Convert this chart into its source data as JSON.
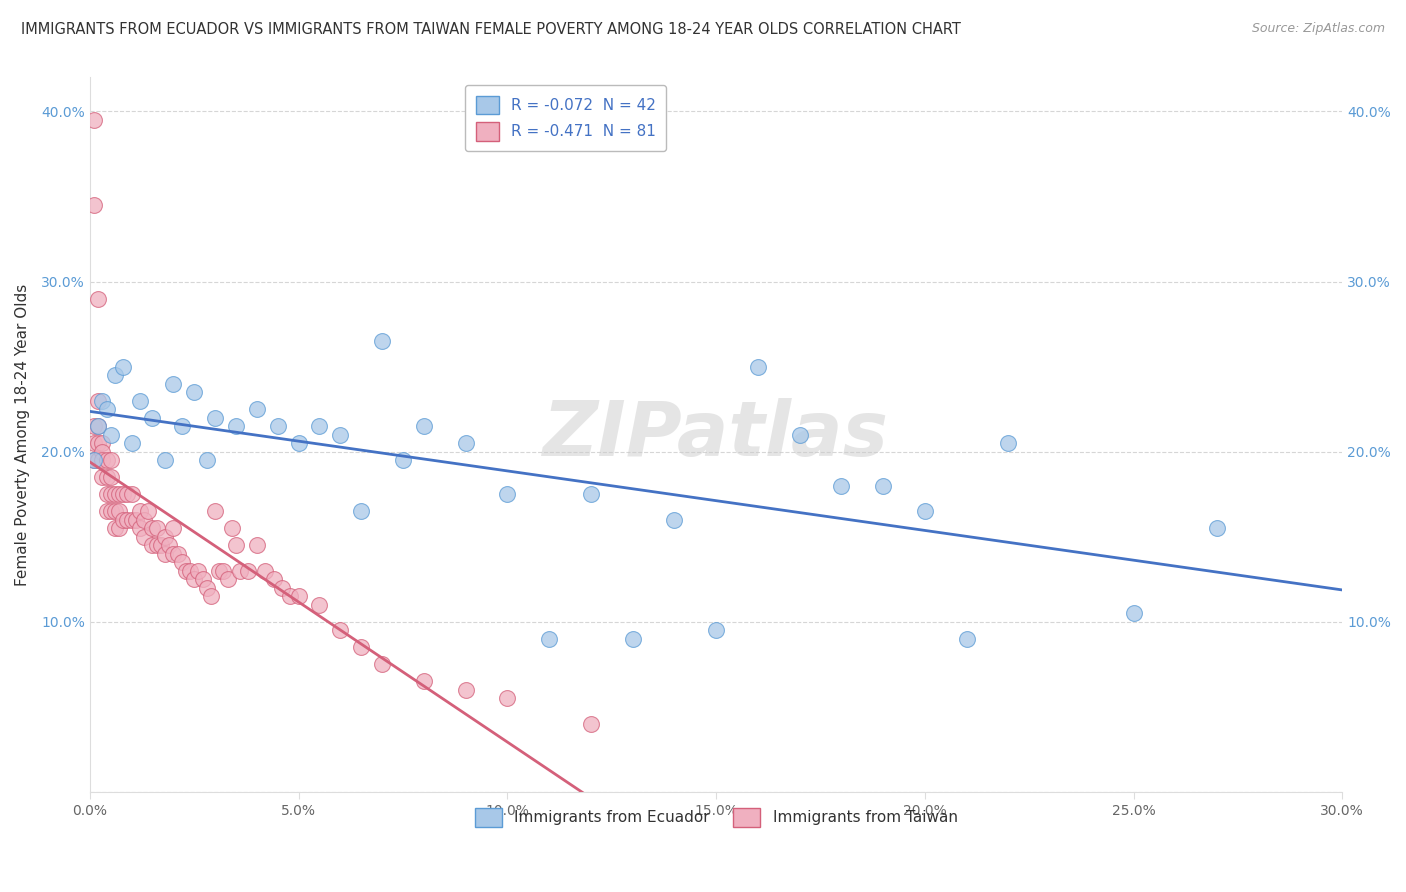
{
  "title": "IMMIGRANTS FROM ECUADOR VS IMMIGRANTS FROM TAIWAN FEMALE POVERTY AMONG 18-24 YEAR OLDS CORRELATION CHART",
  "source": "Source: ZipAtlas.com",
  "ylabel": "Female Poverty Among 18-24 Year Olds",
  "xlim": [
    0.0,
    0.3
  ],
  "ylim": [
    0.0,
    0.42
  ],
  "xticks": [
    0.0,
    0.05,
    0.1,
    0.15,
    0.2,
    0.25,
    0.3
  ],
  "yticks": [
    0.0,
    0.1,
    0.2,
    0.3,
    0.4
  ],
  "ecuador_color": "#a8c8e8",
  "taiwan_color": "#f0b0c0",
  "ecuador_edge": "#5b9bd5",
  "taiwan_edge": "#d4607a",
  "line_ecuador_color": "#4472c4",
  "line_taiwan_color": "#d4607a",
  "legend_ecuador_label": "R = -0.072  N = 42",
  "legend_taiwan_label": "R = -0.471  N = 81",
  "legend_bottom_ecuador": "Immigrants from Ecuador",
  "legend_bottom_taiwan": "Immigrants from Taiwan",
  "watermark": "ZIPatlas",
  "ecuador_x": [
    0.001,
    0.002,
    0.003,
    0.004,
    0.005,
    0.006,
    0.008,
    0.01,
    0.012,
    0.015,
    0.018,
    0.02,
    0.022,
    0.025,
    0.028,
    0.03,
    0.035,
    0.04,
    0.045,
    0.05,
    0.055,
    0.06,
    0.065,
    0.07,
    0.075,
    0.08,
    0.09,
    0.1,
    0.11,
    0.12,
    0.13,
    0.14,
    0.15,
    0.16,
    0.17,
    0.18,
    0.19,
    0.2,
    0.21,
    0.22,
    0.25,
    0.27
  ],
  "ecuador_y": [
    0.195,
    0.215,
    0.23,
    0.225,
    0.21,
    0.245,
    0.25,
    0.205,
    0.23,
    0.22,
    0.195,
    0.24,
    0.215,
    0.235,
    0.195,
    0.22,
    0.215,
    0.225,
    0.215,
    0.205,
    0.215,
    0.21,
    0.165,
    0.265,
    0.195,
    0.215,
    0.205,
    0.175,
    0.09,
    0.175,
    0.09,
    0.16,
    0.095,
    0.25,
    0.21,
    0.18,
    0.18,
    0.165,
    0.09,
    0.205,
    0.105,
    0.155
  ],
  "taiwan_x": [
    0.001,
    0.001,
    0.001,
    0.001,
    0.001,
    0.002,
    0.002,
    0.002,
    0.002,
    0.003,
    0.003,
    0.003,
    0.003,
    0.004,
    0.004,
    0.004,
    0.004,
    0.005,
    0.005,
    0.005,
    0.005,
    0.006,
    0.006,
    0.006,
    0.007,
    0.007,
    0.007,
    0.008,
    0.008,
    0.009,
    0.009,
    0.01,
    0.01,
    0.011,
    0.012,
    0.012,
    0.013,
    0.013,
    0.014,
    0.015,
    0.015,
    0.016,
    0.016,
    0.017,
    0.018,
    0.018,
    0.019,
    0.02,
    0.02,
    0.021,
    0.022,
    0.023,
    0.024,
    0.025,
    0.026,
    0.027,
    0.028,
    0.029,
    0.03,
    0.031,
    0.032,
    0.033,
    0.034,
    0.035,
    0.036,
    0.038,
    0.04,
    0.042,
    0.044,
    0.046,
    0.048,
    0.05,
    0.055,
    0.06,
    0.065,
    0.07,
    0.08,
    0.09,
    0.1,
    0.12,
    0.002
  ],
  "taiwan_y": [
    0.395,
    0.345,
    0.215,
    0.205,
    0.195,
    0.23,
    0.215,
    0.205,
    0.195,
    0.205,
    0.2,
    0.195,
    0.185,
    0.195,
    0.185,
    0.175,
    0.165,
    0.195,
    0.185,
    0.175,
    0.165,
    0.175,
    0.165,
    0.155,
    0.175,
    0.165,
    0.155,
    0.175,
    0.16,
    0.175,
    0.16,
    0.175,
    0.16,
    0.16,
    0.165,
    0.155,
    0.16,
    0.15,
    0.165,
    0.155,
    0.145,
    0.155,
    0.145,
    0.145,
    0.15,
    0.14,
    0.145,
    0.155,
    0.14,
    0.14,
    0.135,
    0.13,
    0.13,
    0.125,
    0.13,
    0.125,
    0.12,
    0.115,
    0.165,
    0.13,
    0.13,
    0.125,
    0.155,
    0.145,
    0.13,
    0.13,
    0.145,
    0.13,
    0.125,
    0.12,
    0.115,
    0.115,
    0.11,
    0.095,
    0.085,
    0.075,
    0.065,
    0.06,
    0.055,
    0.04,
    0.29
  ]
}
